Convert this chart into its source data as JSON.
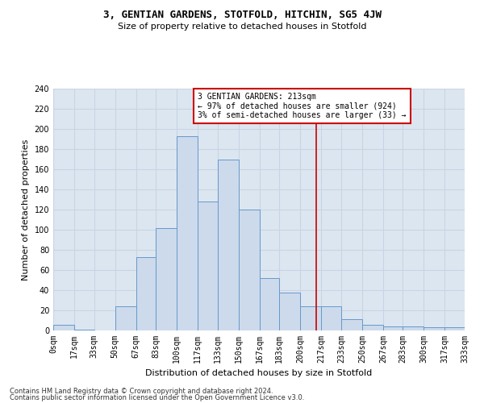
{
  "title": "3, GENTIAN GARDENS, STOTFOLD, HITCHIN, SG5 4JW",
  "subtitle": "Size of property relative to detached houses in Stotfold",
  "xlabel": "Distribution of detached houses by size in Stotfold",
  "ylabel": "Number of detached properties",
  "bar_values": [
    6,
    1,
    0,
    24,
    73,
    102,
    193,
    128,
    170,
    120,
    52,
    38,
    24,
    24,
    11,
    6,
    4,
    4,
    3,
    3
  ],
  "bin_edges": [
    0,
    17,
    33,
    50,
    67,
    83,
    100,
    117,
    133,
    150,
    167,
    183,
    200,
    217,
    233,
    250,
    267,
    283,
    300,
    317,
    333
  ],
  "tick_labels": [
    "0sqm",
    "17sqm",
    "33sqm",
    "50sqm",
    "67sqm",
    "83sqm",
    "100sqm",
    "117sqm",
    "133sqm",
    "150sqm",
    "167sqm",
    "183sqm",
    "200sqm",
    "217sqm",
    "233sqm",
    "250sqm",
    "267sqm",
    "283sqm",
    "300sqm",
    "317sqm",
    "333sqm"
  ],
  "bar_facecolor": "#ccdaeb",
  "bar_edgecolor": "#6699cc",
  "grid_color": "#c8d4e4",
  "bg_color": "#dce6f0",
  "vline_x": 213,
  "vline_color": "#cc0000",
  "annotation_text": "3 GENTIAN GARDENS: 213sqm\n← 97% of detached houses are smaller (924)\n3% of semi-detached houses are larger (33) →",
  "annotation_box_edgecolor": "#cc0000",
  "footer_line1": "Contains HM Land Registry data © Crown copyright and database right 2024.",
  "footer_line2": "Contains public sector information licensed under the Open Government Licence v3.0.",
  "ylim": [
    0,
    240
  ],
  "yticks": [
    0,
    20,
    40,
    60,
    80,
    100,
    120,
    140,
    160,
    180,
    200,
    220,
    240
  ],
  "title_fontsize": 9,
  "subtitle_fontsize": 8,
  "ylabel_fontsize": 8,
  "xlabel_fontsize": 8,
  "tick_fontsize": 7,
  "ann_fontsize": 7
}
